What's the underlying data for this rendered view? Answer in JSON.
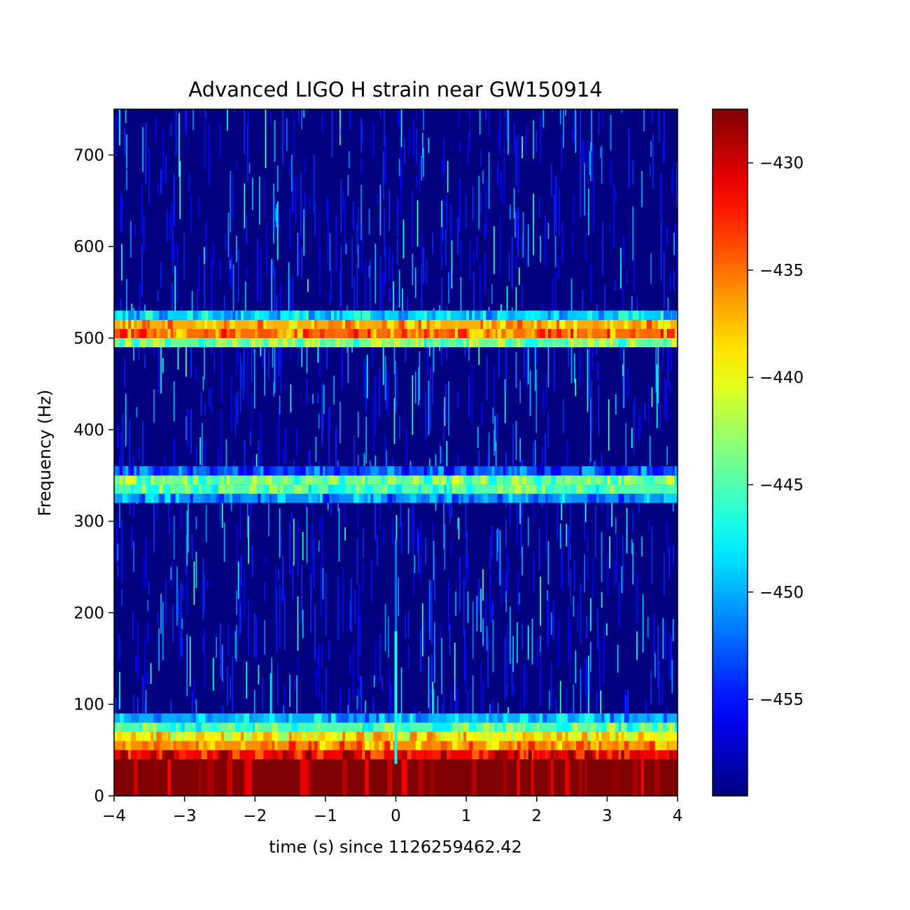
{
  "chart_data": {
    "type": "heatmap",
    "title": "Advanced LIGO H strain near GW150914",
    "xlabel": "time (s) since 1126259462.42",
    "ylabel": "Frequency (Hz)",
    "xlim": [
      -4,
      4
    ],
    "ylim": [
      0,
      750
    ],
    "x_ticks": [
      -4,
      -3,
      -2,
      -1,
      0,
      1,
      2,
      3,
      4
    ],
    "x_tick_labels": [
      "−4",
      "−3",
      "−2",
      "−1",
      "0",
      "1",
      "2",
      "3",
      "4"
    ],
    "y_ticks": [
      0,
      100,
      200,
      300,
      400,
      500,
      600,
      700
    ],
    "y_tick_labels": [
      "0",
      "100",
      "200",
      "300",
      "400",
      "500",
      "600",
      "700"
    ],
    "colormap": "jet",
    "colorbar": {
      "vmin": -459.5,
      "vmax": -427.5,
      "ticks": [
        -430,
        -435,
        -440,
        -445,
        -450,
        -455
      ],
      "tick_labels": [
        "−430",
        "−435",
        "−440",
        "−445",
        "−450",
        "−455"
      ]
    },
    "bands": [
      {
        "f_low": 0,
        "f_high": 40,
        "level": -427.5
      },
      {
        "f_low": 40,
        "f_high": 50,
        "level": -431
      },
      {
        "f_low": 50,
        "f_high": 60,
        "level": -436
      },
      {
        "f_low": 60,
        "f_high": 70,
        "level": -439
      },
      {
        "f_low": 70,
        "f_high": 80,
        "level": -445
      },
      {
        "f_low": 80,
        "f_high": 90,
        "level": -450
      },
      {
        "f_low": 320,
        "f_high": 330,
        "level": -451
      },
      {
        "f_low": 330,
        "f_high": 340,
        "level": -445
      },
      {
        "f_low": 340,
        "f_high": 350,
        "level": -444
      },
      {
        "f_low": 350,
        "f_high": 360,
        "level": -453
      },
      {
        "f_low": 490,
        "f_high": 500,
        "level": -444
      },
      {
        "f_low": 500,
        "f_high": 510,
        "level": -435
      },
      {
        "f_low": 510,
        "f_high": 520,
        "level": -437
      },
      {
        "f_low": 520,
        "f_high": 530,
        "level": -449
      }
    ],
    "background_level": -458,
    "chirp": {
      "time": 0,
      "f_low": 35,
      "f_high": 280
    }
  }
}
